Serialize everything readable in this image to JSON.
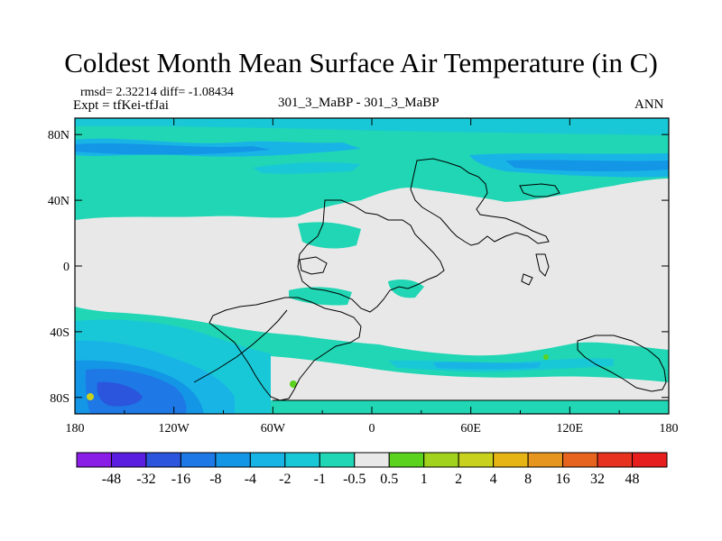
{
  "chart_data": {
    "type": "heatmap",
    "title": "Coldest Month Mean Surface Air Temperature (in C)",
    "stats_line": "rmsd= 2.32214 diff= -1.08434",
    "experiment_line": "Expt = tfKei-tfJai",
    "center_label": "301_3_MaBP - 301_3_MaBP",
    "right_label": "ANN",
    "x_ticks": [
      "180",
      "120W",
      "60W",
      "0",
      "60E",
      "120E",
      "180"
    ],
    "y_ticks": [
      "80N",
      "40N",
      "0",
      "40S",
      "80S"
    ],
    "xlim": [
      -180,
      180
    ],
    "ylim": [
      -90,
      90
    ],
    "colorbar_labels": [
      "-48",
      "-32",
      "-16",
      "-8",
      "-4",
      "-2",
      "-1",
      "-0.5",
      "0.5",
      "1",
      "2",
      "4",
      "8",
      "16",
      "32",
      "48"
    ],
    "colorbar_colors": [
      "#8a1ee6",
      "#5a1ee0",
      "#2a55dc",
      "#1e78e6",
      "#1496e6",
      "#19b4e6",
      "#19c8d6",
      "#20d6b4",
      "#e8e8e8",
      "#5ad21e",
      "#a0d21e",
      "#c8d21e",
      "#e6b414",
      "#e6961e",
      "#e6641e",
      "#e6321e",
      "#e61e1e"
    ]
  }
}
